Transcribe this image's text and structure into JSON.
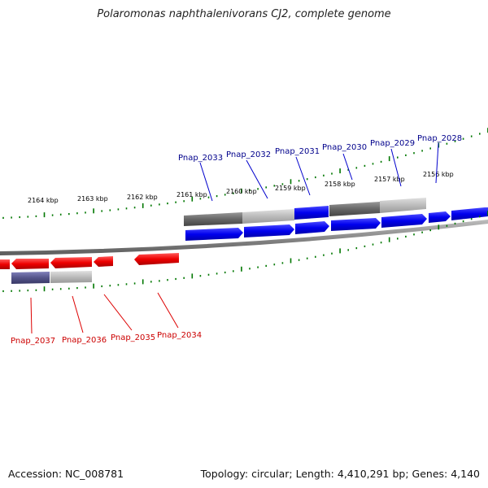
{
  "title": "Polaromonas naphthalenivorans CJ2, complete genome",
  "footer": {
    "accession": "Accession: NC_008781",
    "summary": "Topology: circular; Length: 4,410,291 bp; Genes: 4,140"
  },
  "colors": {
    "forward_gene": "#0000ee",
    "forward_label": "#00008b",
    "reverse_gene": "#ee0000",
    "reverse_label": "#cc0000",
    "tick": "#007700",
    "backbone": "#888888"
  },
  "scale_labels": [
    "2164 kbp",
    "2163 kbp",
    "2162 kbp",
    "2161 kbp",
    "2160 kbp",
    "2159 kbp",
    "2158 kbp",
    "2157 kbp",
    "2156 kbp"
  ],
  "forward_genes": [
    "Pnap_2033",
    "Pnap_2032",
    "Pnap_2031",
    "Pnap_2030",
    "Pnap_2029",
    "Pnap_2028"
  ],
  "reverse_genes": [
    "Pnap_2037",
    "Pnap_2036",
    "Pnap_2035",
    "Pnap_2034"
  ]
}
